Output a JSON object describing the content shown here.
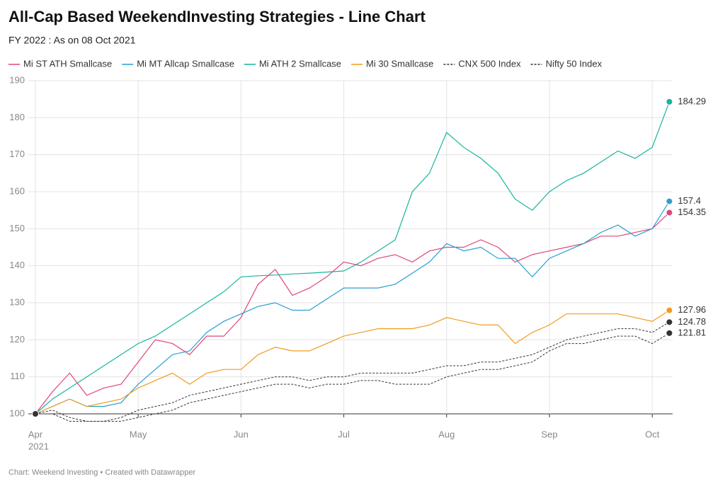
{
  "chart_data": {
    "type": "line",
    "title": "All-Cap Based WeekendInvesting Strategies - Line Chart",
    "subtitle": "FY 2022 : As on 08 Oct 2021",
    "footer": "Chart: Weekend Investing • Created with Datawrapper",
    "year_label": "2021",
    "categories": [
      "Apr",
      null,
      null,
      null,
      null,
      null,
      "May",
      null,
      null,
      null,
      null,
      null,
      "Jun",
      null,
      null,
      null,
      null,
      null,
      "Jul",
      null,
      null,
      null,
      null,
      null,
      "Aug",
      null,
      null,
      null,
      null,
      null,
      "Sep",
      null,
      null,
      null,
      null,
      null,
      "Oct",
      null
    ],
    "series": [
      {
        "name": "Mi ST ATH Smallcase",
        "color": "#e0457b",
        "dash": false,
        "values": [
          100,
          106,
          111,
          105,
          107,
          108,
          114,
          120,
          119,
          116,
          121,
          121,
          126,
          135,
          139,
          132,
          134,
          137,
          141,
          140,
          142,
          143,
          141,
          144,
          145,
          145,
          147,
          145,
          141,
          143,
          144,
          145,
          146,
          148,
          148,
          149,
          150,
          154.35
        ]
      },
      {
        "name": "Mi MT Allcap Smallcase",
        "color": "#2a9fcf",
        "dash": false,
        "values": [
          100,
          102,
          104,
          102,
          102,
          103,
          108,
          112,
          116,
          117,
          122,
          125,
          127,
          129,
          130,
          128,
          128,
          131,
          134,
          134,
          134,
          135,
          138,
          141,
          146,
          144,
          145,
          142,
          142,
          137,
          142,
          144,
          146,
          149,
          151,
          148,
          150,
          157.4
        ]
      },
      {
        "name": "Mi ATH 2 Smallcase",
        "color": "#19b39f",
        "dash": false,
        "values": [
          100,
          104,
          107,
          110,
          113,
          116,
          119,
          121,
          124,
          127,
          130,
          133,
          137,
          137.3,
          137.5,
          137.8,
          138,
          138.3,
          138.6,
          141,
          144,
          147,
          160,
          165,
          176,
          172,
          169,
          165,
          158,
          155,
          160,
          163,
          165,
          168,
          171,
          169,
          172,
          184.29
        ]
      },
      {
        "name": "Mi 30 Smallcase",
        "color": "#f29a1d",
        "dash": false,
        "values": [
          100,
          102,
          104,
          102,
          103,
          104,
          107,
          109,
          111,
          108,
          111,
          112,
          112,
          116,
          118,
          117,
          117,
          119,
          121,
          122,
          123,
          123,
          123,
          124,
          126,
          125,
          124,
          124,
          119,
          122,
          124,
          127,
          127,
          127,
          127,
          126,
          125,
          127.96
        ]
      },
      {
        "name": "CNX 500 Index",
        "color": "#333333",
        "dash": true,
        "values": [
          100,
          101,
          99,
          98,
          98,
          99,
          101,
          102,
          103,
          105,
          106,
          107,
          108,
          109,
          110,
          110,
          109,
          110,
          110,
          111,
          111,
          111,
          111,
          112,
          113,
          113,
          114,
          114,
          115,
          116,
          118,
          120,
          121,
          122,
          123,
          123,
          122,
          124.78
        ]
      },
      {
        "name": "Nifty 50 Index",
        "color": "#333333",
        "dash": true,
        "values": [
          100,
          100,
          98,
          98,
          98,
          98,
          99,
          100,
          101,
          103,
          104,
          105,
          106,
          107,
          108,
          108,
          107,
          108,
          108,
          109,
          109,
          108,
          108,
          108,
          110,
          111,
          112,
          112,
          113,
          114,
          117,
          119,
          119,
          120,
          121,
          121,
          119,
          121.81
        ]
      }
    ],
    "ylim": [
      100,
      190
    ],
    "yticks": [
      100,
      110,
      120,
      130,
      140,
      150,
      160,
      170,
      180,
      190
    ],
    "grid": true
  }
}
